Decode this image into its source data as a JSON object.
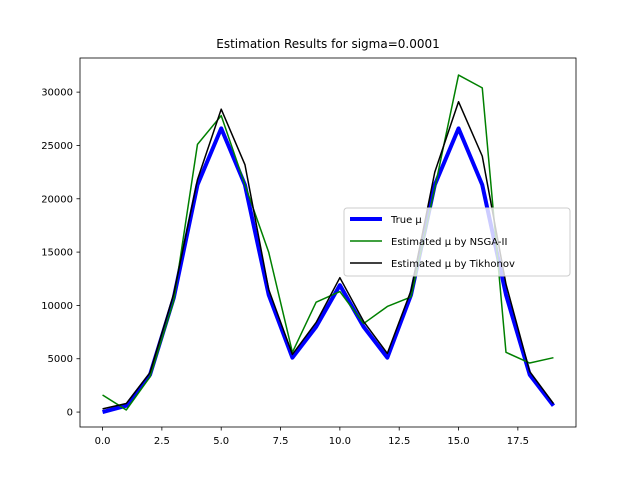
{
  "chart_data": {
    "type": "line",
    "title": "Estimation Results for sigma=0.0001",
    "xlabel": "",
    "ylabel": "",
    "xlim": [
      -0.95,
      19.95
    ],
    "ylim": [
      -1400,
      33200
    ],
    "xticks": [
      0,
      2.5,
      5,
      7.5,
      10,
      12.5,
      15,
      17.5
    ],
    "xtick_labels": [
      "0.0",
      "2.5",
      "5.0",
      "7.5",
      "10.0",
      "12.5",
      "15.0",
      "17.5"
    ],
    "yticks": [
      0,
      5000,
      10000,
      15000,
      20000,
      25000,
      30000
    ],
    "ytick_labels": [
      "0",
      "5000",
      "10000",
      "15000",
      "20000",
      "25000",
      "30000"
    ],
    "grid": false,
    "legend_position": "center-right",
    "x": [
      0,
      1,
      2,
      3,
      4,
      5,
      6,
      7,
      8,
      9,
      10,
      11,
      12,
      13,
      14,
      15,
      16,
      17,
      18,
      19
    ],
    "series": [
      {
        "name": "True μ",
        "color": "#0000ff",
        "values": [
          0,
          600,
          3500,
          10700,
          21300,
          26600,
          21300,
          11000,
          5100,
          8000,
          11900,
          8000,
          5100,
          11000,
          21300,
          26600,
          21300,
          11000,
          3500,
          600
        ]
      },
      {
        "name": "Estimated μ by NSGA-II",
        "color": "#008000",
        "values": [
          1600,
          200,
          3300,
          10400,
          25100,
          27800,
          21300,
          15000,
          5600,
          10300,
          11300,
          8300,
          9900,
          10800,
          21000,
          31600,
          30400,
          5600,
          4600,
          5100
        ]
      },
      {
        "name": "Estimated μ by Tikhonov",
        "color": "#000000",
        "values": [
          300,
          800,
          3700,
          11100,
          21800,
          28400,
          23200,
          11500,
          5400,
          8400,
          12600,
          8500,
          5500,
          11400,
          22500,
          29100,
          24000,
          12000,
          3800,
          800
        ]
      }
    ]
  }
}
